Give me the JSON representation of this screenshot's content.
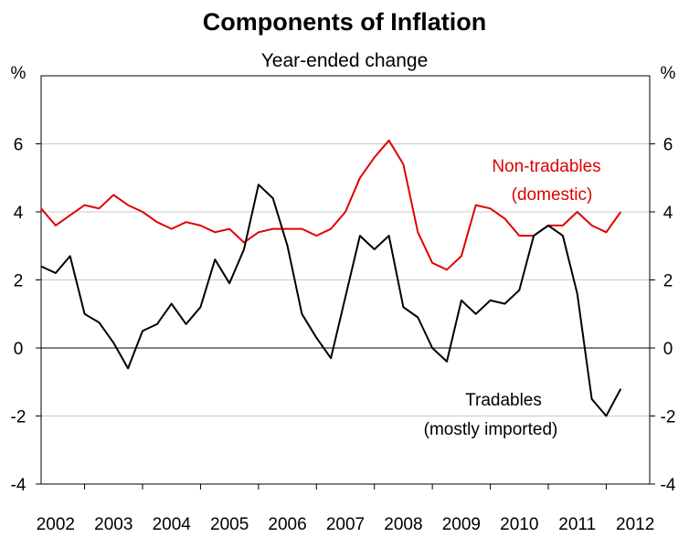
{
  "chart_data": {
    "type": "line",
    "title": "Components of Inflation",
    "subtitle": "Year-ended change",
    "ylabel_left": "%",
    "ylabel_right": "%",
    "ylim": [
      -4,
      8
    ],
    "yticks": [
      -4,
      -2,
      0,
      2,
      4,
      6
    ],
    "ytick_labels": [
      "-4",
      "-2",
      "0",
      "2",
      "4",
      "6"
    ],
    "xlim": [
      2002.0,
      2012.5
    ],
    "xtick_labels": [
      "2002",
      "2003",
      "2004",
      "2005",
      "2006",
      "2007",
      "2008",
      "2009",
      "2010",
      "2011",
      "2012"
    ],
    "grid": true,
    "series": [
      {
        "name": "Non-tradables",
        "label_lines": [
          "Non-tradables",
          "(domestic)"
        ],
        "color": "#e00000",
        "x": [
          2002.0,
          2002.25,
          2002.5,
          2002.75,
          2003.0,
          2003.25,
          2003.5,
          2003.75,
          2004.0,
          2004.25,
          2004.5,
          2004.75,
          2005.0,
          2005.25,
          2005.5,
          2005.75,
          2006.0,
          2006.25,
          2006.5,
          2006.75,
          2007.0,
          2007.25,
          2007.5,
          2007.75,
          2008.0,
          2008.25,
          2008.5,
          2008.75,
          2009.0,
          2009.25,
          2009.5,
          2009.75,
          2010.0,
          2010.25,
          2010.5,
          2010.75,
          2011.0,
          2011.25,
          2011.5,
          2011.75,
          2012.0
        ],
        "values": [
          4.1,
          3.6,
          3.9,
          4.2,
          4.1,
          4.5,
          4.2,
          4.0,
          3.7,
          3.5,
          3.7,
          3.6,
          3.4,
          3.5,
          3.1,
          3.4,
          3.5,
          3.5,
          3.5,
          3.3,
          3.5,
          4.0,
          5.0,
          5.6,
          6.1,
          5.4,
          3.4,
          2.5,
          2.3,
          2.7,
          4.2,
          4.1,
          3.8,
          3.3,
          3.3,
          3.6,
          3.6,
          4.0,
          3.6,
          3.4,
          4.0
        ]
      },
      {
        "name": "Tradables",
        "label_lines": [
          "Tradables",
          "(mostly imported)"
        ],
        "color": "#000000",
        "x": [
          2002.0,
          2002.25,
          2002.5,
          2002.75,
          2003.0,
          2003.25,
          2003.5,
          2003.75,
          2004.0,
          2004.25,
          2004.5,
          2004.75,
          2005.0,
          2005.25,
          2005.5,
          2005.75,
          2006.0,
          2006.25,
          2006.5,
          2006.75,
          2007.0,
          2007.25,
          2007.5,
          2007.75,
          2008.0,
          2008.25,
          2008.5,
          2008.75,
          2009.0,
          2009.25,
          2009.5,
          2009.75,
          2010.0,
          2010.25,
          2010.5,
          2010.75,
          2011.0,
          2011.25,
          2011.5,
          2011.75,
          2012.0
        ],
        "values": [
          2.4,
          2.2,
          2.7,
          1.0,
          0.75,
          0.15,
          -0.6,
          0.5,
          0.7,
          1.3,
          0.7,
          1.2,
          2.6,
          1.9,
          2.9,
          4.8,
          4.4,
          3.0,
          1.0,
          0.3,
          -0.3,
          1.5,
          3.3,
          2.9,
          3.3,
          1.2,
          0.9,
          0.0,
          -0.4,
          1.4,
          1.0,
          1.4,
          1.3,
          1.7,
          3.3,
          3.6,
          3.3,
          1.6,
          -1.5,
          -2.0,
          -1.2
        ]
      }
    ]
  }
}
